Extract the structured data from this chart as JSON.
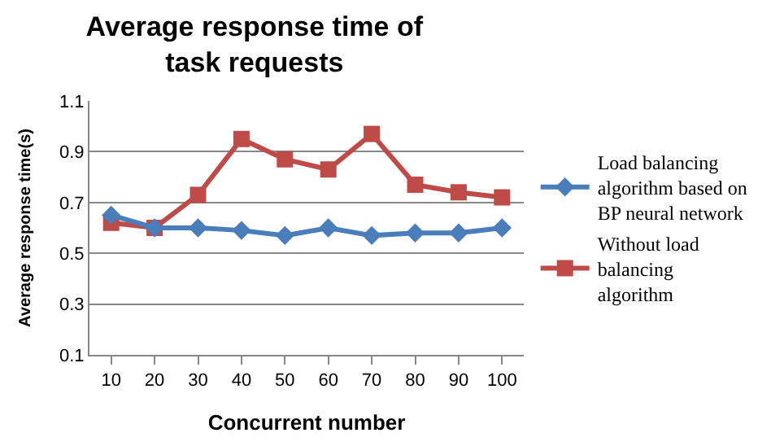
{
  "chart_data": {
    "type": "line",
    "title": "Average response time of task requests",
    "xlabel": "Concurrent number",
    "ylabel": "Average response time(s)",
    "categories": [
      "10",
      "20",
      "30",
      "40",
      "50",
      "60",
      "70",
      "80",
      "90",
      "100"
    ],
    "series": [
      {
        "name": "Load balancing algorithm based on BP neural network",
        "color": "#4a7ebb",
        "marker": "diamond",
        "values": [
          0.65,
          0.6,
          0.6,
          0.59,
          0.57,
          0.6,
          0.57,
          0.58,
          0.58,
          0.6
        ]
      },
      {
        "name": "Without load balancing algorithm",
        "color": "#be4b48",
        "marker": "square",
        "values": [
          0.62,
          0.6,
          0.73,
          0.95,
          0.87,
          0.83,
          0.97,
          0.77,
          0.74,
          0.72
        ]
      }
    ],
    "ylim": [
      0.1,
      1.1
    ],
    "yticks": [
      0.1,
      0.3,
      0.5,
      0.7,
      0.9,
      1.1
    ],
    "grid": "y",
    "legend": "right"
  }
}
